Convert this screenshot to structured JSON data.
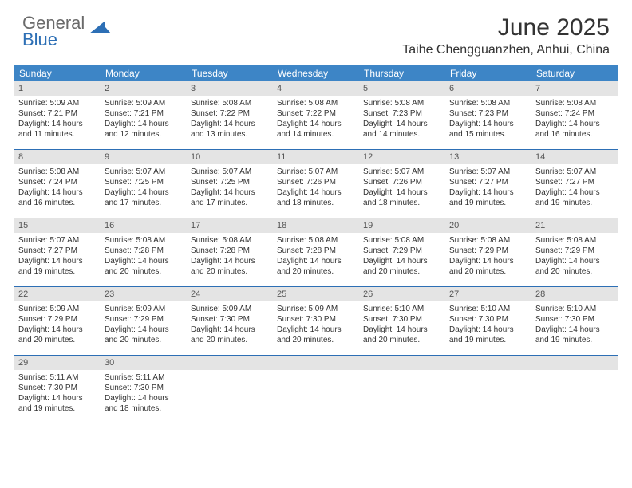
{
  "brand": {
    "general": "General",
    "blue": "Blue"
  },
  "title": "June 2025",
  "location": "Taihe Chengguanzhen, Anhui, China",
  "colors": {
    "header_bg": "#3d85c6",
    "daynum_bg": "#e4e4e4",
    "border": "#2d6fb5",
    "text": "#333333"
  },
  "weekdays": [
    "Sunday",
    "Monday",
    "Tuesday",
    "Wednesday",
    "Thursday",
    "Friday",
    "Saturday"
  ],
  "weeks": [
    [
      {
        "n": "1",
        "sr": "Sunrise: 5:09 AM",
        "ss": "Sunset: 7:21 PM",
        "dl": "Daylight: 14 hours and 11 minutes."
      },
      {
        "n": "2",
        "sr": "Sunrise: 5:09 AM",
        "ss": "Sunset: 7:21 PM",
        "dl": "Daylight: 14 hours and 12 minutes."
      },
      {
        "n": "3",
        "sr": "Sunrise: 5:08 AM",
        "ss": "Sunset: 7:22 PM",
        "dl": "Daylight: 14 hours and 13 minutes."
      },
      {
        "n": "4",
        "sr": "Sunrise: 5:08 AM",
        "ss": "Sunset: 7:22 PM",
        "dl": "Daylight: 14 hours and 14 minutes."
      },
      {
        "n": "5",
        "sr": "Sunrise: 5:08 AM",
        "ss": "Sunset: 7:23 PM",
        "dl": "Daylight: 14 hours and 14 minutes."
      },
      {
        "n": "6",
        "sr": "Sunrise: 5:08 AM",
        "ss": "Sunset: 7:23 PM",
        "dl": "Daylight: 14 hours and 15 minutes."
      },
      {
        "n": "7",
        "sr": "Sunrise: 5:08 AM",
        "ss": "Sunset: 7:24 PM",
        "dl": "Daylight: 14 hours and 16 minutes."
      }
    ],
    [
      {
        "n": "8",
        "sr": "Sunrise: 5:08 AM",
        "ss": "Sunset: 7:24 PM",
        "dl": "Daylight: 14 hours and 16 minutes."
      },
      {
        "n": "9",
        "sr": "Sunrise: 5:07 AM",
        "ss": "Sunset: 7:25 PM",
        "dl": "Daylight: 14 hours and 17 minutes."
      },
      {
        "n": "10",
        "sr": "Sunrise: 5:07 AM",
        "ss": "Sunset: 7:25 PM",
        "dl": "Daylight: 14 hours and 17 minutes."
      },
      {
        "n": "11",
        "sr": "Sunrise: 5:07 AM",
        "ss": "Sunset: 7:26 PM",
        "dl": "Daylight: 14 hours and 18 minutes."
      },
      {
        "n": "12",
        "sr": "Sunrise: 5:07 AM",
        "ss": "Sunset: 7:26 PM",
        "dl": "Daylight: 14 hours and 18 minutes."
      },
      {
        "n": "13",
        "sr": "Sunrise: 5:07 AM",
        "ss": "Sunset: 7:27 PM",
        "dl": "Daylight: 14 hours and 19 minutes."
      },
      {
        "n": "14",
        "sr": "Sunrise: 5:07 AM",
        "ss": "Sunset: 7:27 PM",
        "dl": "Daylight: 14 hours and 19 minutes."
      }
    ],
    [
      {
        "n": "15",
        "sr": "Sunrise: 5:07 AM",
        "ss": "Sunset: 7:27 PM",
        "dl": "Daylight: 14 hours and 19 minutes."
      },
      {
        "n": "16",
        "sr": "Sunrise: 5:08 AM",
        "ss": "Sunset: 7:28 PM",
        "dl": "Daylight: 14 hours and 20 minutes."
      },
      {
        "n": "17",
        "sr": "Sunrise: 5:08 AM",
        "ss": "Sunset: 7:28 PM",
        "dl": "Daylight: 14 hours and 20 minutes."
      },
      {
        "n": "18",
        "sr": "Sunrise: 5:08 AM",
        "ss": "Sunset: 7:28 PM",
        "dl": "Daylight: 14 hours and 20 minutes."
      },
      {
        "n": "19",
        "sr": "Sunrise: 5:08 AM",
        "ss": "Sunset: 7:29 PM",
        "dl": "Daylight: 14 hours and 20 minutes."
      },
      {
        "n": "20",
        "sr": "Sunrise: 5:08 AM",
        "ss": "Sunset: 7:29 PM",
        "dl": "Daylight: 14 hours and 20 minutes."
      },
      {
        "n": "21",
        "sr": "Sunrise: 5:08 AM",
        "ss": "Sunset: 7:29 PM",
        "dl": "Daylight: 14 hours and 20 minutes."
      }
    ],
    [
      {
        "n": "22",
        "sr": "Sunrise: 5:09 AM",
        "ss": "Sunset: 7:29 PM",
        "dl": "Daylight: 14 hours and 20 minutes."
      },
      {
        "n": "23",
        "sr": "Sunrise: 5:09 AM",
        "ss": "Sunset: 7:29 PM",
        "dl": "Daylight: 14 hours and 20 minutes."
      },
      {
        "n": "24",
        "sr": "Sunrise: 5:09 AM",
        "ss": "Sunset: 7:30 PM",
        "dl": "Daylight: 14 hours and 20 minutes."
      },
      {
        "n": "25",
        "sr": "Sunrise: 5:09 AM",
        "ss": "Sunset: 7:30 PM",
        "dl": "Daylight: 14 hours and 20 minutes."
      },
      {
        "n": "26",
        "sr": "Sunrise: 5:10 AM",
        "ss": "Sunset: 7:30 PM",
        "dl": "Daylight: 14 hours and 20 minutes."
      },
      {
        "n": "27",
        "sr": "Sunrise: 5:10 AM",
        "ss": "Sunset: 7:30 PM",
        "dl": "Daylight: 14 hours and 19 minutes."
      },
      {
        "n": "28",
        "sr": "Sunrise: 5:10 AM",
        "ss": "Sunset: 7:30 PM",
        "dl": "Daylight: 14 hours and 19 minutes."
      }
    ],
    [
      {
        "n": "29",
        "sr": "Sunrise: 5:11 AM",
        "ss": "Sunset: 7:30 PM",
        "dl": "Daylight: 14 hours and 19 minutes."
      },
      {
        "n": "30",
        "sr": "Sunrise: 5:11 AM",
        "ss": "Sunset: 7:30 PM",
        "dl": "Daylight: 14 hours and 18 minutes."
      },
      null,
      null,
      null,
      null,
      null
    ]
  ]
}
